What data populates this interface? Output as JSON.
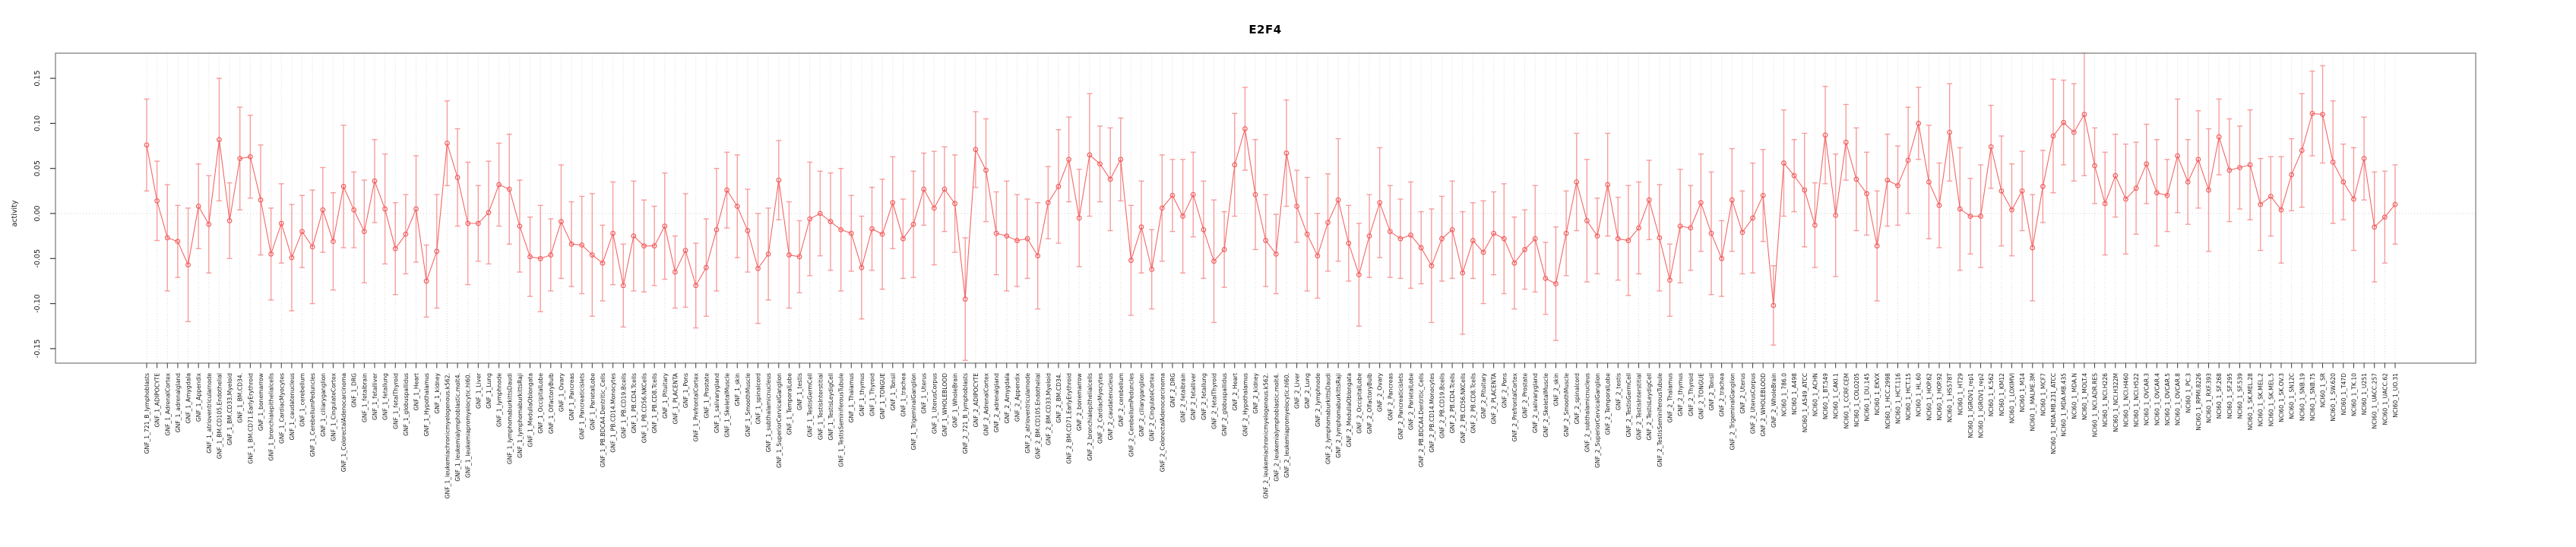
{
  "title": "E2F4",
  "ylabel": "activity",
  "colors": {
    "series_line": "#f25f5f",
    "error_bar": "#f79494",
    "gridline": "#d8d8d8",
    "zero_line": "#cfcfcf",
    "box_border": "#8a8a8a",
    "tick": "#3a3a3a",
    "label_text": "#1a1a1a",
    "background": "#ffffff"
  },
  "chart_data": {
    "type": "scatter",
    "subtype": "points-with-error-bars-and-line",
    "title": "E2F4",
    "xlabel": "",
    "ylabel": "activity",
    "ylim": [
      -0.166,
      0.178
    ],
    "yticks": [
      0.15,
      0.1,
      0.05,
      0.0,
      -0.05,
      -0.1,
      -0.15
    ],
    "ytick_labels": [
      "0.15",
      "0.10",
      "0.05",
      "0.00",
      "-0.05",
      "-0.10",
      "-0.15"
    ],
    "grid": "vertical-dotted-per-category-plus-zero-line",
    "legend": "none",
    "categories": [
      "GNF_1_721_B_lymphoblasts",
      "GNF_1_ADIPOCYTE",
      "GNF_1_AdrenalCortex",
      "GNF_1_adrenalgland",
      "GNF_1_Amygdala",
      "GNF_1_Appendix",
      "GNF_1_atrioventricularnode",
      "GNF_1_BM.CD105.Endothelial",
      "GNF_1_BM.CD33.Myeloid",
      "GNF_1_BM.CD34.",
      "GNF_1_BM.CD71.EarlyErythroid",
      "GNF_1_bonemarrow",
      "GNF_1_bronchialepithelialcells",
      "GNF_1_CardiacMyocytes",
      "GNF_1_caudatenucleus",
      "GNF_1_cerebellum",
      "GNF_1_CerebellumPeduncles",
      "GNF_1_ciliaryganglion",
      "GNF_1_CingulateCortex",
      "GNF_1_ColorectalAdenocarcinoma",
      "GNF_1_DRG",
      "GNF_1_fetalbrain",
      "GNF_1_fetalliver",
      "GNF_1_fetallung",
      "GNF_1_fetalThyroid",
      "GNF_1_globuspallidus",
      "GNF_1_Heart",
      "GNF_1_Hypothalamus",
      "GNF_1_kidney",
      "GNF_1_leukemiachronicmyelogenous.k562.",
      "GNF_1_leukemialymphoblastic.molt4.",
      "GNF_1_leukemiapromyelocytic.hl60.",
      "GNF_1_Liver",
      "GNF_1_Lung",
      "GNF_1_lymphnode",
      "GNF_1_lymphomaburkittsDaudi",
      "GNF_1_lymphomaburkittsRaji",
      "GNF_1_MedullaOblongata",
      "GNF_1_OccipitalLobe",
      "GNF_1_OlfactoryBulb",
      "GNF_1_Ovary",
      "GNF_1_Pancreas",
      "GNF_1_Pancreaticislets",
      "GNF_1_ParietalLobe",
      "GNF_1_PB.BDCA4.Dentritic_Cells",
      "GNF_1_PB.CD14.Monocytes",
      "GNF_1_PB.CD19.Bcells",
      "GNF_1_PB.CD4.Tcells",
      "GNF_1_PB.CD56.NKCells",
      "GNF_1_PB.CD8.Tcells",
      "GNF_1_Pituitary",
      "GNF_1_PLACENTA",
      "GNF_1_Pons",
      "GNF_1_PrefrontalCortex",
      "GNF_1_Prostate",
      "GNF_1_salivarygland",
      "GNF_1_SkeletalMuscle",
      "GNF_1_skin",
      "GNF_1_SmoothMuscle",
      "GNF_1_spinalcord",
      "GNF_1_subthalamicnucleus",
      "GNF_1_SuperiorCervicalGanglion",
      "GNF_1_TemporalLobe",
      "GNF_1_testis",
      "GNF_1_TestisGermCell",
      "GNF_1_TestisInterstitial",
      "GNF_1_TestisLeydigCell",
      "GNF_1_TestisSeminiferousTubule",
      "GNF_1_Thalamus",
      "GNF_1_thymus",
      "GNF_1_Thyroid",
      "GNF_1_TONGUE",
      "GNF_1_Tonsil",
      "GNF_1_trachea",
      "GNF_1_TrigeminalGanglion",
      "GNF_1_Uterus",
      "GNF_1_UterusCorpus",
      "GNF_1_WHOLEBLOOD",
      "GNF_1_WholeBrain",
      "GNF_2_721_B_lymphoblasts",
      "GNF_2_ADIPOCYTE",
      "GNF_2_AdrenalCortex",
      "GNF_2_adrenalgland",
      "GNF_2_Amygdala",
      "GNF_2_Appendix",
      "GNF_2_atrioventricularnode",
      "GNF_2_BM.CD105.Endothelial",
      "GNF_2_BM.CD33.Myeloid",
      "GNF_2_BM.CD34.",
      "GNF_2_BM.CD71.EarlyErythroid",
      "GNF_2_bonemarrow",
      "GNF_2_bronchialepithelialcells",
      "GNF_2_CardiacMyocytes",
      "GNF_2_caudatenucleus",
      "GNF_2_cerebellum",
      "GNF_2_CerebellumPeduncles",
      "GNF_2_ciliaryganglion",
      "GNF_2_CingulateCortex",
      "GNF_2_ColorectalAdenocarcinoma",
      "GNF_2_DRG",
      "GNF_2_fetalbrain",
      "GNF_2_fetalliver",
      "GNF_2_fetallung",
      "GNF_2_fetalThyroid",
      "GNF_2_globuspallidus",
      "GNF_2_Heart",
      "GNF_2_Hypothalamus",
      "GNF_2_kidney",
      "GNF_2_leukemiachronicmyelogenous.k562.",
      "GNF_2_leukemialymphoblastic.molt4.",
      "GNF_2_leukemiapromyelocytic.hl60.",
      "GNF_2_Liver",
      "GNF_2_Lung",
      "GNF_2_lymphnode",
      "GNF_2_lymphomaburkittsDaudi",
      "GNF_2_lymphomaburkittsRaji",
      "GNF_2_MedullaOblongata",
      "GNF_2_OccipitalLobe",
      "GNF_2_OlfactoryBulb",
      "GNF_2_Ovary",
      "GNF_2_Pancreas",
      "GNF_2_Pancreaticislets",
      "GNF_2_ParietalLobe",
      "GNF_2_PB.BDCA4.Dentritic_Cells",
      "GNF_2_PB.CD14.Monocytes",
      "GNF_2_PB.CD19.Bcells",
      "GNF_2_PB.CD4.Tcells",
      "GNF_2_PB.CD56.NKCells",
      "GNF_2_PB.CD8.Tcells",
      "GNF_2_Pituitary",
      "GNF_2_PLACENTA",
      "GNF_2_Pons",
      "GNF_2_PrefrontalCortex",
      "GNF_2_Prostate",
      "GNF_2_salivarygland",
      "GNF_2_SkeletalMuscle",
      "GNF_2_skin",
      "GNF_2_SmoothMuscle",
      "GNF_2_spinalcord",
      "GNF_2_subthalamicnucleus",
      "GNF_2_SuperiorCervicalGanglion",
      "GNF_2_TemporalLobe",
      "GNF_2_testis",
      "GNF_2_TestisGermCell",
      "GNF_2_TestisInterstitial",
      "GNF_2_TestisLeydigCell",
      "GNF_2_TestisSeminiferousTubule",
      "GNF_2_Thalamus",
      "GNF_2_thymus",
      "GNF_2_Thyroid",
      "GNF_2_TONGUE",
      "GNF_2_Tonsil",
      "GNF_2_trachea",
      "GNF_2_TrigeminalGanglion",
      "GNF_2_Uterus",
      "GNF_2_UterusCorpus",
      "GNF_2_WHOLEBLOOD",
      "GNF_2_WholeBrain",
      "NCI60_1_786.0",
      "NCI60_1_A498",
      "NCI60_1_A549_ATCC",
      "NCI60_1_ACHN",
      "NCI60_1_BT.549",
      "NCI60_1_CAKI.1",
      "NCI60_1_CCRF.CEM",
      "NCI60_1_COLO205",
      "NCI60_1_DU.145",
      "NCI60_1_EKVX",
      "NCI60_1_HCC.2998",
      "NCI60_1_HCT.116",
      "NCI60_1_HCT.15",
      "NCI60_1_HL.60",
      "NCI60_1_HOP.62",
      "NCI60_1_HOP.92",
      "NCI60_1_HS578T",
      "NCI60_1_HT29",
      "NCI60_1_IGROV1_rep1",
      "NCI60_1_IGROV1_rep2",
      "NCI60_1_K.562",
      "NCI60_1_KM12",
      "NCI60_1_LOXIMVI",
      "NCI60_1_M14",
      "NCI60_1_MALME.3M",
      "NCI60_1_MCF7",
      "NCI60_1_MDA.MB.231_ATCC",
      "NCI60_1_MDA.MB.435",
      "NCI60_1_MDA.N",
      "NCI60_1_MOLT.4",
      "NCI60_1_NCI.ADR.RES",
      "NCI60_1_NCI.H226",
      "NCI60_1_NCI.H322M",
      "NCI60_1_NCI.H460",
      "NCI60_1_NCI.H522",
      "NCI60_1_OVCAR.3",
      "NCI60_1_OVCAR.4",
      "NCI60_1_OVCAR.5",
      "NCI60_1_OVCAR.8",
      "NCI60_1_PC.3",
      "NCI60_1_RPMI.8226",
      "NCI60_1_RXF.393",
      "NCI60_1_SF.268",
      "NCI60_1_SF.295",
      "NCI60_1_SF.539",
      "NCI60_1_SK.MEL.28",
      "NCI60_1_SK.MEL.2",
      "NCI60_1_SK.MEL.5",
      "NCI60_1_SK.OV.3",
      "NCI60_1_SN12C",
      "NCI60_1_SNB.19",
      "NCI60_1_SNB.75",
      "NCI60_1_SR",
      "NCI60_1_SW.620",
      "NCI60_1_T47D",
      "NCI60_1_TK.10",
      "NCI60_1_U251",
      "NCI60_1_UACC.257",
      "NCI60_1_UACC.62",
      "NCI60_1_UO.31"
    ],
    "values": [
      0.076,
      0.014,
      -0.027,
      -0.031,
      -0.057,
      0.008,
      -0.012,
      0.082,
      -0.008,
      0.061,
      0.063,
      0.015,
      -0.045,
      -0.011,
      -0.049,
      -0.02,
      -0.037,
      0.004,
      -0.031,
      0.03,
      0.004,
      -0.02,
      0.036,
      0.005,
      -0.039,
      -0.023,
      0.005,
      -0.075,
      -0.042,
      0.078,
      0.04,
      -0.011,
      -0.011,
      0.001,
      0.032,
      0.027,
      -0.014,
      -0.048,
      -0.05,
      -0.046,
      -0.009,
      -0.034,
      -0.035,
      -0.046,
      -0.055,
      -0.022,
      -0.08,
      -0.025,
      -0.036,
      -0.036,
      -0.014,
      -0.065,
      -0.041,
      -0.08,
      -0.06,
      -0.018,
      0.026,
      0.008,
      -0.019,
      -0.061,
      -0.045,
      0.037,
      -0.046,
      -0.048,
      -0.006,
      0.0,
      -0.009,
      -0.018,
      -0.022,
      -0.06,
      -0.017,
      -0.023,
      0.012,
      -0.028,
      -0.012,
      0.027,
      0.006,
      0.027,
      0.011,
      -0.095,
      0.071,
      0.048,
      -0.022,
      -0.025,
      -0.03,
      -0.028,
      -0.047,
      0.012,
      0.03,
      0.06,
      -0.005,
      0.065,
      0.055,
      0.038,
      0.06,
      -0.052,
      -0.015,
      -0.062,
      0.006,
      0.02,
      -0.003,
      0.021,
      -0.018,
      -0.053,
      -0.04,
      0.054,
      0.094,
      0.021,
      -0.03,
      -0.045,
      0.067,
      0.008,
      -0.023,
      -0.047,
      -0.01,
      0.015,
      -0.033,
      -0.068,
      -0.025,
      0.012,
      -0.02,
      -0.028,
      -0.024,
      -0.038,
      -0.058,
      -0.028,
      -0.018,
      -0.066,
      -0.03,
      -0.043,
      -0.022,
      -0.028,
      -0.055,
      -0.04,
      -0.028,
      -0.072,
      -0.078,
      -0.022,
      0.035,
      -0.008,
      -0.025,
      0.032,
      -0.028,
      -0.03,
      -0.016,
      0.015,
      -0.027,
      -0.074,
      -0.014,
      -0.016,
      0.012,
      -0.022,
      -0.05,
      0.015,
      -0.021,
      -0.005,
      0.02,
      -0.102,
      0.056,
      0.042,
      0.026,
      -0.013,
      0.087,
      -0.002,
      0.079,
      0.038,
      0.022,
      -0.036,
      0.037,
      0.031,
      0.059,
      0.1,
      0.035,
      0.009,
      0.09,
      0.005,
      -0.003,
      -0.003,
      0.074,
      0.025,
      0.004,
      0.025,
      -0.038,
      0.03,
      0.086,
      0.101,
      0.09,
      0.11,
      0.053,
      0.011,
      0.042,
      0.016,
      0.028,
      0.055,
      0.023,
      0.02,
      0.064,
      0.035,
      0.06,
      0.026,
      0.085,
      0.048,
      0.051,
      0.054,
      0.01,
      0.019,
      0.004,
      0.043,
      0.07,
      0.111,
      0.11,
      0.057,
      0.035,
      0.016,
      0.061,
      -0.015,
      -0.004,
      0.01
    ],
    "error": [
      0.051,
      0.044,
      0.059,
      0.04,
      0.063,
      0.047,
      0.054,
      0.068,
      0.042,
      0.057,
      0.046,
      0.061,
      0.051,
      0.044,
      0.059,
      0.04,
      0.063,
      0.047,
      0.054,
      0.068,
      0.042,
      0.057,
      0.046,
      0.061,
      0.051,
      0.044,
      0.059,
      0.04,
      0.063,
      0.047,
      0.054,
      0.068,
      0.042,
      0.057,
      0.046,
      0.061,
      0.051,
      0.044,
      0.059,
      0.04,
      0.063,
      0.047,
      0.054,
      0.068,
      0.042,
      0.057,
      0.046,
      0.061,
      0.051,
      0.044,
      0.059,
      0.04,
      0.063,
      0.047,
      0.054,
      0.068,
      0.042,
      0.057,
      0.046,
      0.061,
      0.051,
      0.044,
      0.059,
      0.04,
      0.063,
      0.047,
      0.054,
      0.068,
      0.042,
      0.057,
      0.046,
      0.061,
      0.051,
      0.044,
      0.059,
      0.04,
      0.063,
      0.047,
      0.054,
      0.068,
      0.042,
      0.057,
      0.046,
      0.061,
      0.051,
      0.044,
      0.059,
      0.04,
      0.063,
      0.047,
      0.054,
      0.068,
      0.042,
      0.057,
      0.046,
      0.061,
      0.051,
      0.044,
      0.059,
      0.04,
      0.063,
      0.047,
      0.054,
      0.068,
      0.042,
      0.057,
      0.046,
      0.061,
      0.051,
      0.044,
      0.059,
      0.04,
      0.063,
      0.047,
      0.054,
      0.068,
      0.042,
      0.057,
      0.046,
      0.061,
      0.051,
      0.044,
      0.059,
      0.04,
      0.063,
      0.047,
      0.054,
      0.068,
      0.042,
      0.057,
      0.046,
      0.061,
      0.051,
      0.044,
      0.059,
      0.04,
      0.063,
      0.047,
      0.054,
      0.068,
      0.042,
      0.057,
      0.046,
      0.061,
      0.051,
      0.044,
      0.059,
      0.04,
      0.063,
      0.047,
      0.054,
      0.068,
      0.042,
      0.057,
      0.046,
      0.061,
      0.051,
      0.044,
      0.059,
      0.04,
      0.063,
      0.047,
      0.054,
      0.068,
      0.042,
      0.057,
      0.046,
      0.061,
      0.051,
      0.044,
      0.059,
      0.04,
      0.063,
      0.047,
      0.054,
      0.068,
      0.042,
      0.057,
      0.046,
      0.061,
      0.051,
      0.044,
      0.059,
      0.04,
      0.063,
      0.047,
      0.054,
      0.068,
      0.042,
      0.057,
      0.046,
      0.061,
      0.051,
      0.044,
      0.059,
      0.04,
      0.063,
      0.047,
      0.054,
      0.068,
      0.042,
      0.057,
      0.046,
      0.061,
      0.051,
      0.044,
      0.059,
      0.04,
      0.063,
      0.047,
      0.054,
      0.068,
      0.042,
      0.057,
      0.046,
      0.061,
      0.051,
      0.044
    ]
  }
}
